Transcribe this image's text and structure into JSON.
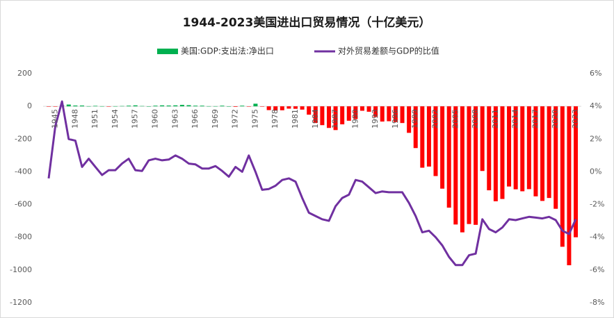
{
  "chart_data": {
    "type": "bar_line",
    "title": "1944-2023美国进出口贸易情况（十亿美元）",
    "categories": [
      null,
      "1945",
      null,
      null,
      "1948",
      null,
      null,
      "1951",
      null,
      null,
      "1954",
      null,
      null,
      "1957",
      null,
      null,
      "1960",
      null,
      null,
      "1963",
      null,
      null,
      "1966",
      null,
      null,
      "1969",
      null,
      null,
      "1972",
      null,
      null,
      "1975",
      null,
      null,
      "1978",
      null,
      null,
      "1981",
      null,
      null,
      "1984",
      null,
      null,
      "1987",
      null,
      null,
      "1990",
      null,
      null,
      "1993",
      null,
      null,
      "1996",
      null,
      null,
      "1999",
      null,
      null,
      "2002",
      null,
      null,
      "2005",
      null,
      null,
      "2008",
      null,
      null,
      "2011",
      null,
      null,
      "2014",
      null,
      null,
      "2017",
      null,
      null,
      "2020",
      null,
      null,
      "2023"
    ],
    "series": [
      {
        "name": "美国:GDP:支出法:净出口",
        "color": "#00b050",
        "negative_color": "#ff0000",
        "values": [
          -2,
          -1,
          7,
          11,
          5,
          5,
          1,
          3,
          1,
          -1,
          1,
          2,
          4,
          6,
          2,
          0,
          4,
          6,
          5,
          6,
          9,
          7,
          4,
          4,
          1,
          1,
          4,
          0,
          -3,
          4,
          -1,
          16,
          -2,
          -23,
          -26,
          -24,
          -14,
          -15,
          -20,
          -51,
          -102,
          -115,
          -132,
          -145,
          -110,
          -88,
          -78,
          -27,
          -33,
          -65,
          -93,
          -91,
          -96,
          -102,
          -162,
          -255,
          -375,
          -368,
          -426,
          -503,
          -619,
          -722,
          -770,
          -719,
          -724,
          -395,
          -513,
          -580,
          -566,
          -490,
          -507,
          -519,
          -506,
          -550,
          -578,
          -560,
          -626,
          -858,
          -971,
          -800
        ]
      },
      {
        "name": "对外贸易差额与GDP的比值",
        "color": "#7030a0",
        "axis": "y2",
        "values": [
          -0.4,
          2.8,
          4.3,
          2.0,
          1.9,
          0.3,
          0.8,
          0.3,
          -0.2,
          0.1,
          0.1,
          0.5,
          0.8,
          0.1,
          0.05,
          0.7,
          0.8,
          0.7,
          0.75,
          1.0,
          0.8,
          0.5,
          0.45,
          0.2,
          0.2,
          0.35,
          0.05,
          -0.3,
          0.3,
          0.0,
          1.0,
          0.0,
          -1.1,
          -1.05,
          -0.85,
          -0.5,
          -0.4,
          -0.6,
          -1.6,
          -2.5,
          -2.7,
          -2.9,
          -3.0,
          -2.1,
          -1.6,
          -1.4,
          -0.5,
          -0.6,
          -0.95,
          -1.3,
          -1.2,
          -1.25,
          -1.25,
          -1.25,
          -1.9,
          -2.7,
          -3.7,
          -3.6,
          -4.0,
          -4.5,
          -5.2,
          -5.7,
          -5.7,
          -5.1,
          -5.0,
          -2.9,
          -3.5,
          -3.7,
          -3.4,
          -2.9,
          -2.95,
          -2.85,
          -2.75,
          -2.8,
          -2.85,
          -2.75,
          -2.95,
          -3.6,
          -3.8,
          -2.9
        ]
      }
    ],
    "ylim": [
      -1200,
      200
    ],
    "yticks": [
      200,
      0,
      -200,
      -400,
      -600,
      -800,
      -1000,
      -1200
    ],
    "y2lim": [
      -8,
      6
    ],
    "y2ticks": [
      {
        "value": 6,
        "label": "6%"
      },
      {
        "value": 4,
        "label": "4%"
      },
      {
        "value": 2,
        "label": "2%"
      },
      {
        "value": 0,
        "label": "0%"
      },
      {
        "value": -2,
        "label": "-2%"
      },
      {
        "value": -4,
        "label": "-4%"
      },
      {
        "value": -6,
        "label": "-6%"
      },
      {
        "value": -8,
        "label": "-8%"
      }
    ],
    "legend": "top"
  }
}
